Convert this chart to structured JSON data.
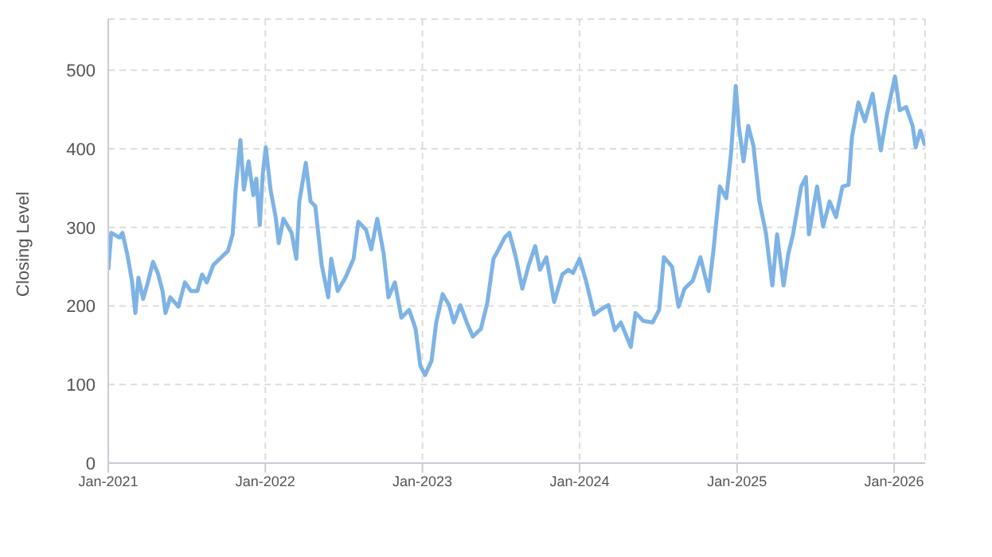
{
  "chart_data": {
    "type": "line",
    "ylabel": "Closing Level",
    "x": [
      "2021-01-01",
      "2021-01-08",
      "2021-01-27",
      "2021-02-03",
      "2021-02-14",
      "2021-02-25",
      "2021-03-05",
      "2021-03-12",
      "2021-03-23",
      "2021-04-03",
      "2021-04-15",
      "2021-04-26",
      "2021-05-07",
      "2021-05-14",
      "2021-05-25",
      "2021-06-13",
      "2021-06-28",
      "2021-07-12",
      "2021-07-27",
      "2021-08-07",
      "2021-08-18",
      "2021-09-02",
      "2021-09-17",
      "2021-10-06",
      "2021-10-17",
      "2021-10-24",
      "2021-11-04",
      "2021-11-12",
      "2021-11-23",
      "2021-12-04",
      "2021-12-11",
      "2021-12-19",
      "2021-12-26",
      "2022-01-02",
      "2022-01-13",
      "2022-01-25",
      "2022-02-01",
      "2022-02-12",
      "2022-03-03",
      "2022-03-14",
      "2022-03-21",
      "2022-04-05",
      "2022-04-16",
      "2022-04-27",
      "2022-05-12",
      "2022-05-27",
      "2022-06-03",
      "2022-06-18",
      "2022-07-06",
      "2022-07-25",
      "2022-08-05",
      "2022-08-23",
      "2022-09-04",
      "2022-09-18",
      "2022-10-03",
      "2022-10-14",
      "2022-10-29",
      "2022-11-13",
      "2022-12-01",
      "2022-12-16",
      "2022-12-27",
      "2023-01-07",
      "2023-01-22",
      "2023-02-02",
      "2023-02-17",
      "2023-03-04",
      "2023-03-15",
      "2023-03-30",
      "2023-04-14",
      "2023-04-28",
      "2023-05-17",
      "2023-06-01",
      "2023-06-15",
      "2023-06-27",
      "2023-07-11",
      "2023-07-22",
      "2023-08-06",
      "2023-08-21",
      "2023-09-05",
      "2023-09-20",
      "2023-10-01",
      "2023-10-16",
      "2023-11-03",
      "2023-11-22",
      "2023-12-06",
      "2023-12-17",
      "2024-01-01",
      "2024-01-16",
      "2024-02-04",
      "2024-02-18",
      "2024-03-08",
      "2024-03-23",
      "2024-04-06",
      "2024-04-29",
      "2024-05-10",
      "2024-05-28",
      "2024-06-19",
      "2024-07-04",
      "2024-07-15",
      "2024-08-03",
      "2024-08-18",
      "2024-09-01",
      "2024-09-20",
      "2024-10-08",
      "2024-10-27",
      "2024-11-07",
      "2024-11-22",
      "2024-12-07",
      "2024-12-18",
      "2024-12-29",
      "2025-01-05",
      "2025-01-16",
      "2025-01-27",
      "2025-02-08",
      "2025-02-22",
      "2025-03-09",
      "2025-03-24",
      "2025-04-04",
      "2025-04-19",
      "2025-04-30",
      "2025-05-11",
      "2025-05-30",
      "2025-06-10",
      "2025-06-17",
      "2025-07-06",
      "2025-07-20",
      "2025-08-04",
      "2025-08-19",
      "2025-09-03",
      "2025-09-17",
      "2025-09-25",
      "2025-10-10",
      "2025-10-25",
      "2025-11-12",
      "2025-12-01",
      "2025-12-15",
      "2026-01-03",
      "2026-01-14",
      "2026-01-29",
      "2026-02-13",
      "2026-02-20",
      "2026-03-03",
      "2026-03-14"
    ],
    "series": [
      {
        "color": "#7eb3e6",
        "values": [
          246,
          293,
          287,
          293,
          266,
          232,
          191,
          236,
          209,
          230,
          256,
          242,
          219,
          191,
          211,
          199,
          230,
          219,
          219,
          240,
          230,
          252,
          260,
          270,
          291,
          348,
          411,
          348,
          384,
          341,
          362,
          303,
          368,
          402,
          348,
          313,
          280,
          311,
          293,
          260,
          333,
          382,
          333,
          327,
          252,
          211,
          260,
          219,
          236,
          260,
          307,
          297,
          272,
          311,
          266,
          211,
          230,
          185,
          195,
          171,
          124,
          112,
          130,
          179,
          215,
          201,
          179,
          201,
          179,
          161,
          171,
          205,
          260,
          272,
          287,
          293,
          262,
          222,
          252,
          276,
          246,
          262,
          205,
          240,
          246,
          242,
          260,
          232,
          189,
          195,
          201,
          169,
          179,
          148,
          191,
          181,
          179,
          195,
          262,
          250,
          199,
          222,
          232,
          262,
          219,
          270,
          352,
          337,
          394,
          480,
          429,
          384,
          429,
          404,
          333,
          293,
          226,
          291,
          226,
          266,
          291,
          352,
          364,
          291,
          352,
          301,
          333,
          313,
          352,
          354,
          415,
          459,
          435,
          470,
          398,
          443,
          492,
          449,
          453,
          429,
          402,
          423,
          404
        ]
      }
    ],
    "xlim": [
      "2021-01-01",
      "2026-03-14"
    ],
    "xticks": [
      {
        "value": "2021-01-01",
        "label": "Jan-2021"
      },
      {
        "value": "2022-01-01",
        "label": "Jan-2022"
      },
      {
        "value": "2023-01-01",
        "label": "Jan-2023"
      },
      {
        "value": "2024-01-01",
        "label": "Jan-2024"
      },
      {
        "value": "2025-01-01",
        "label": "Jan-2025"
      },
      {
        "value": "2026-01-01",
        "label": "Jan-2026"
      }
    ],
    "ylim": [
      0,
      565
    ],
    "yticks": [
      0,
      100,
      200,
      300,
      400,
      500
    ],
    "grid": true,
    "legend": false,
    "marker": "none",
    "line_style": "solid"
  }
}
